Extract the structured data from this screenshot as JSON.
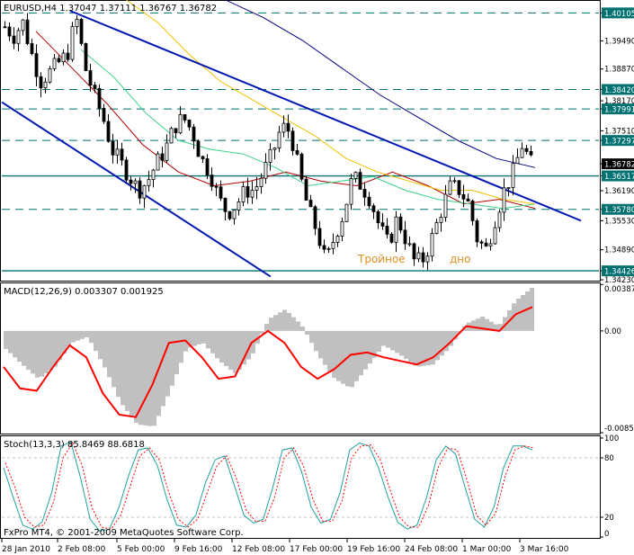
{
  "main_panel": {
    "header": "EURUSD,H4  1.37047 1.37111 1.36767 1.36782",
    "annotation_left": "Тройное",
    "annotation_right": "дно",
    "price_ticks": [
      "1.40105",
      "1.39490",
      "1.38870",
      "1.38420",
      "1.38170",
      "1.37991",
      "1.37510",
      "1.37297",
      "1.36782",
      "1.36517",
      "1.36190",
      "1.35780",
      "1.35530",
      "1.34890",
      "1.34426",
      "1.34230"
    ],
    "highlighted_ticks": [
      "1.40105",
      "1.38420",
      "1.37991",
      "1.37297",
      "1.36517",
      "1.35780",
      "1.34426"
    ],
    "current_price": "1.36782"
  },
  "macd_panel": {
    "header": "MACD(12,26,9) 0.003307 0.001925",
    "ticks": [
      "0.003877",
      "0.00",
      "-0.0085"
    ]
  },
  "stoch_panel": {
    "header": "Stoch(13,3,3) 85.8469 88.6818",
    "ticks": [
      "100",
      "80",
      "20",
      "0"
    ]
  },
  "footer_copyright": "FxPro MT4, © 2001-2009 MetaQuotes Software Corp.",
  "time_ticks": [
    "28 Jan 2010",
    "2 Feb 08:00",
    "5 Feb 00:00",
    "9 Feb 16:00",
    "12 Feb 08:00",
    "17 Feb 00:00",
    "19 Feb 16:00",
    "24 Feb 08:00",
    "1 Mar 00:00",
    "3 Mar 16:00"
  ],
  "colors": {
    "bull_candle": "#ffffff",
    "bear_candle": "#000000",
    "ma_red": "#b00000",
    "ma_green": "#3cd08a",
    "ma_yellow": "#f0c000",
    "ma_navy": "#000080",
    "trendline": "#0018b0",
    "hline": "#007070",
    "macd_hist": "#c0c0c0",
    "macd_signal": "#ff0000",
    "stoch_main": "#20a0a0",
    "stoch_signal": "#ff0000",
    "annotation": "#e09020"
  },
  "chart_data": [
    {
      "type": "candlestick",
      "symbol": "EURUSD",
      "timeframe": "H4",
      "ylim": [
        1.3423,
        1.4035
      ],
      "x": [
        "28 Jan 2010",
        "2 Feb 08:00",
        "5 Feb 00:00",
        "9 Feb 16:00",
        "12 Feb 08:00",
        "17 Feb 00:00",
        "19 Feb 16:00",
        "24 Feb 08:00",
        "1 Mar 00:00",
        "3 Mar 16:00"
      ],
      "close_path": [
        1.398,
        1.396,
        1.399,
        1.392,
        1.386,
        1.388,
        1.39,
        1.392,
        1.4,
        1.389,
        1.383,
        1.378,
        1.371,
        1.368,
        1.365,
        1.362,
        1.364,
        1.368,
        1.371,
        1.376,
        1.378,
        1.375,
        1.369,
        1.366,
        1.36,
        1.357,
        1.359,
        1.362,
        1.362,
        1.366,
        1.37,
        1.376,
        1.375,
        1.366,
        1.358,
        1.353,
        1.346,
        1.352,
        1.357,
        1.365,
        1.363,
        1.36,
        1.354,
        1.35,
        1.356,
        1.351,
        1.346,
        1.347,
        1.352,
        1.358,
        1.363,
        1.362,
        1.359,
        1.351,
        1.349,
        1.356,
        1.362,
        1.366,
        1.372,
        1.368
      ],
      "horizontal_levels": [
        1.40105,
        1.3842,
        1.37991,
        1.37297,
        1.36517,
        1.3578,
        1.34426
      ],
      "trendlines": [
        {
          "from": [
            1.40152,
            0.13
          ],
          "to": [
            1.3553,
            0.97
          ]
        },
        {
          "from": [
            1.3814,
            0.0
          ],
          "to": [
            1.343,
            0.45
          ]
        }
      ],
      "moving_averages": {
        "red": [
          1.397,
          1.389,
          1.381,
          1.372,
          1.366,
          1.363,
          1.364,
          1.366,
          1.364,
          1.363,
          1.366,
          1.363,
          1.359,
          1.36,
          1.358
        ],
        "green": [
          1.393,
          1.387,
          1.379,
          1.373,
          1.371,
          1.37,
          1.367,
          1.363,
          1.364,
          1.365,
          1.362,
          1.36,
          1.359,
          1.358,
          1.359
        ],
        "yellow": [
          1.404,
          1.399,
          1.392,
          1.386,
          1.382,
          1.378,
          1.374,
          1.369,
          1.366,
          1.364,
          1.362,
          1.362,
          1.36,
          1.359
        ],
        "navy": [
          1.404,
          1.4,
          1.395,
          1.389,
          1.383,
          1.378,
          1.373,
          1.369,
          1.367
        ]
      }
    },
    {
      "type": "bar",
      "name": "MACD(12,26,9)",
      "ylim": [
        -0.0085,
        0.0039
      ],
      "main": 0.003307,
      "signal": 0.001925,
      "histogram": [
        -0.0015,
        -0.0028,
        -0.004,
        -0.003,
        -0.001,
        -0.0005,
        -0.003,
        -0.006,
        -0.0078,
        -0.008,
        -0.005,
        -0.0015,
        -0.001,
        -0.0025,
        -0.0036,
        -0.002,
        0.001,
        0.0018,
        0.0005,
        -0.002,
        -0.004,
        -0.0048,
        -0.003,
        -0.0012,
        -0.002,
        -0.003,
        -0.0028,
        -0.0014,
        0.0006,
        0.0012,
        0.0004,
        0.0025,
        0.0036
      ],
      "signal_line": [
        -0.003,
        -0.0048,
        -0.005,
        -0.003,
        -0.0012,
        -0.0022,
        -0.0052,
        -0.007,
        -0.0072,
        -0.0045,
        -0.001,
        -0.0008,
        -0.0022,
        -0.004,
        -0.0038,
        -0.001,
        0.0,
        -0.001,
        -0.003,
        -0.004,
        -0.0032,
        -0.002,
        -0.0018,
        -0.0022,
        -0.0025,
        -0.0028,
        -0.0022,
        -0.001,
        0.0004,
        0.0002,
        0.0,
        0.0014,
        0.002
      ]
    },
    {
      "type": "line",
      "name": "Stoch(13,3,3)",
      "ylim": [
        0,
        100
      ],
      "levels": [
        20,
        80
      ],
      "main": 85.8469,
      "signal": 88.6818,
      "main_line": [
        70,
        40,
        12,
        8,
        15,
        45,
        92,
        96,
        60,
        18,
        6,
        8,
        30,
        62,
        88,
        90,
        72,
        38,
        12,
        10,
        22,
        55,
        78,
        82,
        52,
        22,
        14,
        18,
        50,
        88,
        90,
        66,
        30,
        14,
        18,
        45,
        88,
        95,
        92,
        70,
        40,
        15,
        8,
        12,
        40,
        78,
        92,
        84,
        50,
        18,
        10,
        30,
        70,
        92,
        92,
        88
      ],
      "signal_line": [
        75,
        50,
        20,
        10,
        12,
        35,
        80,
        95,
        72,
        30,
        10,
        8,
        22,
        52,
        82,
        90,
        78,
        45,
        18,
        10,
        18,
        45,
        72,
        82,
        60,
        28,
        16,
        16,
        40,
        80,
        90,
        72,
        38,
        16,
        16,
        36,
        80,
        92,
        93,
        78,
        48,
        20,
        10,
        10,
        32,
        70,
        90,
        88,
        58,
        22,
        12,
        24,
        62,
        88,
        92,
        90
      ]
    }
  ]
}
